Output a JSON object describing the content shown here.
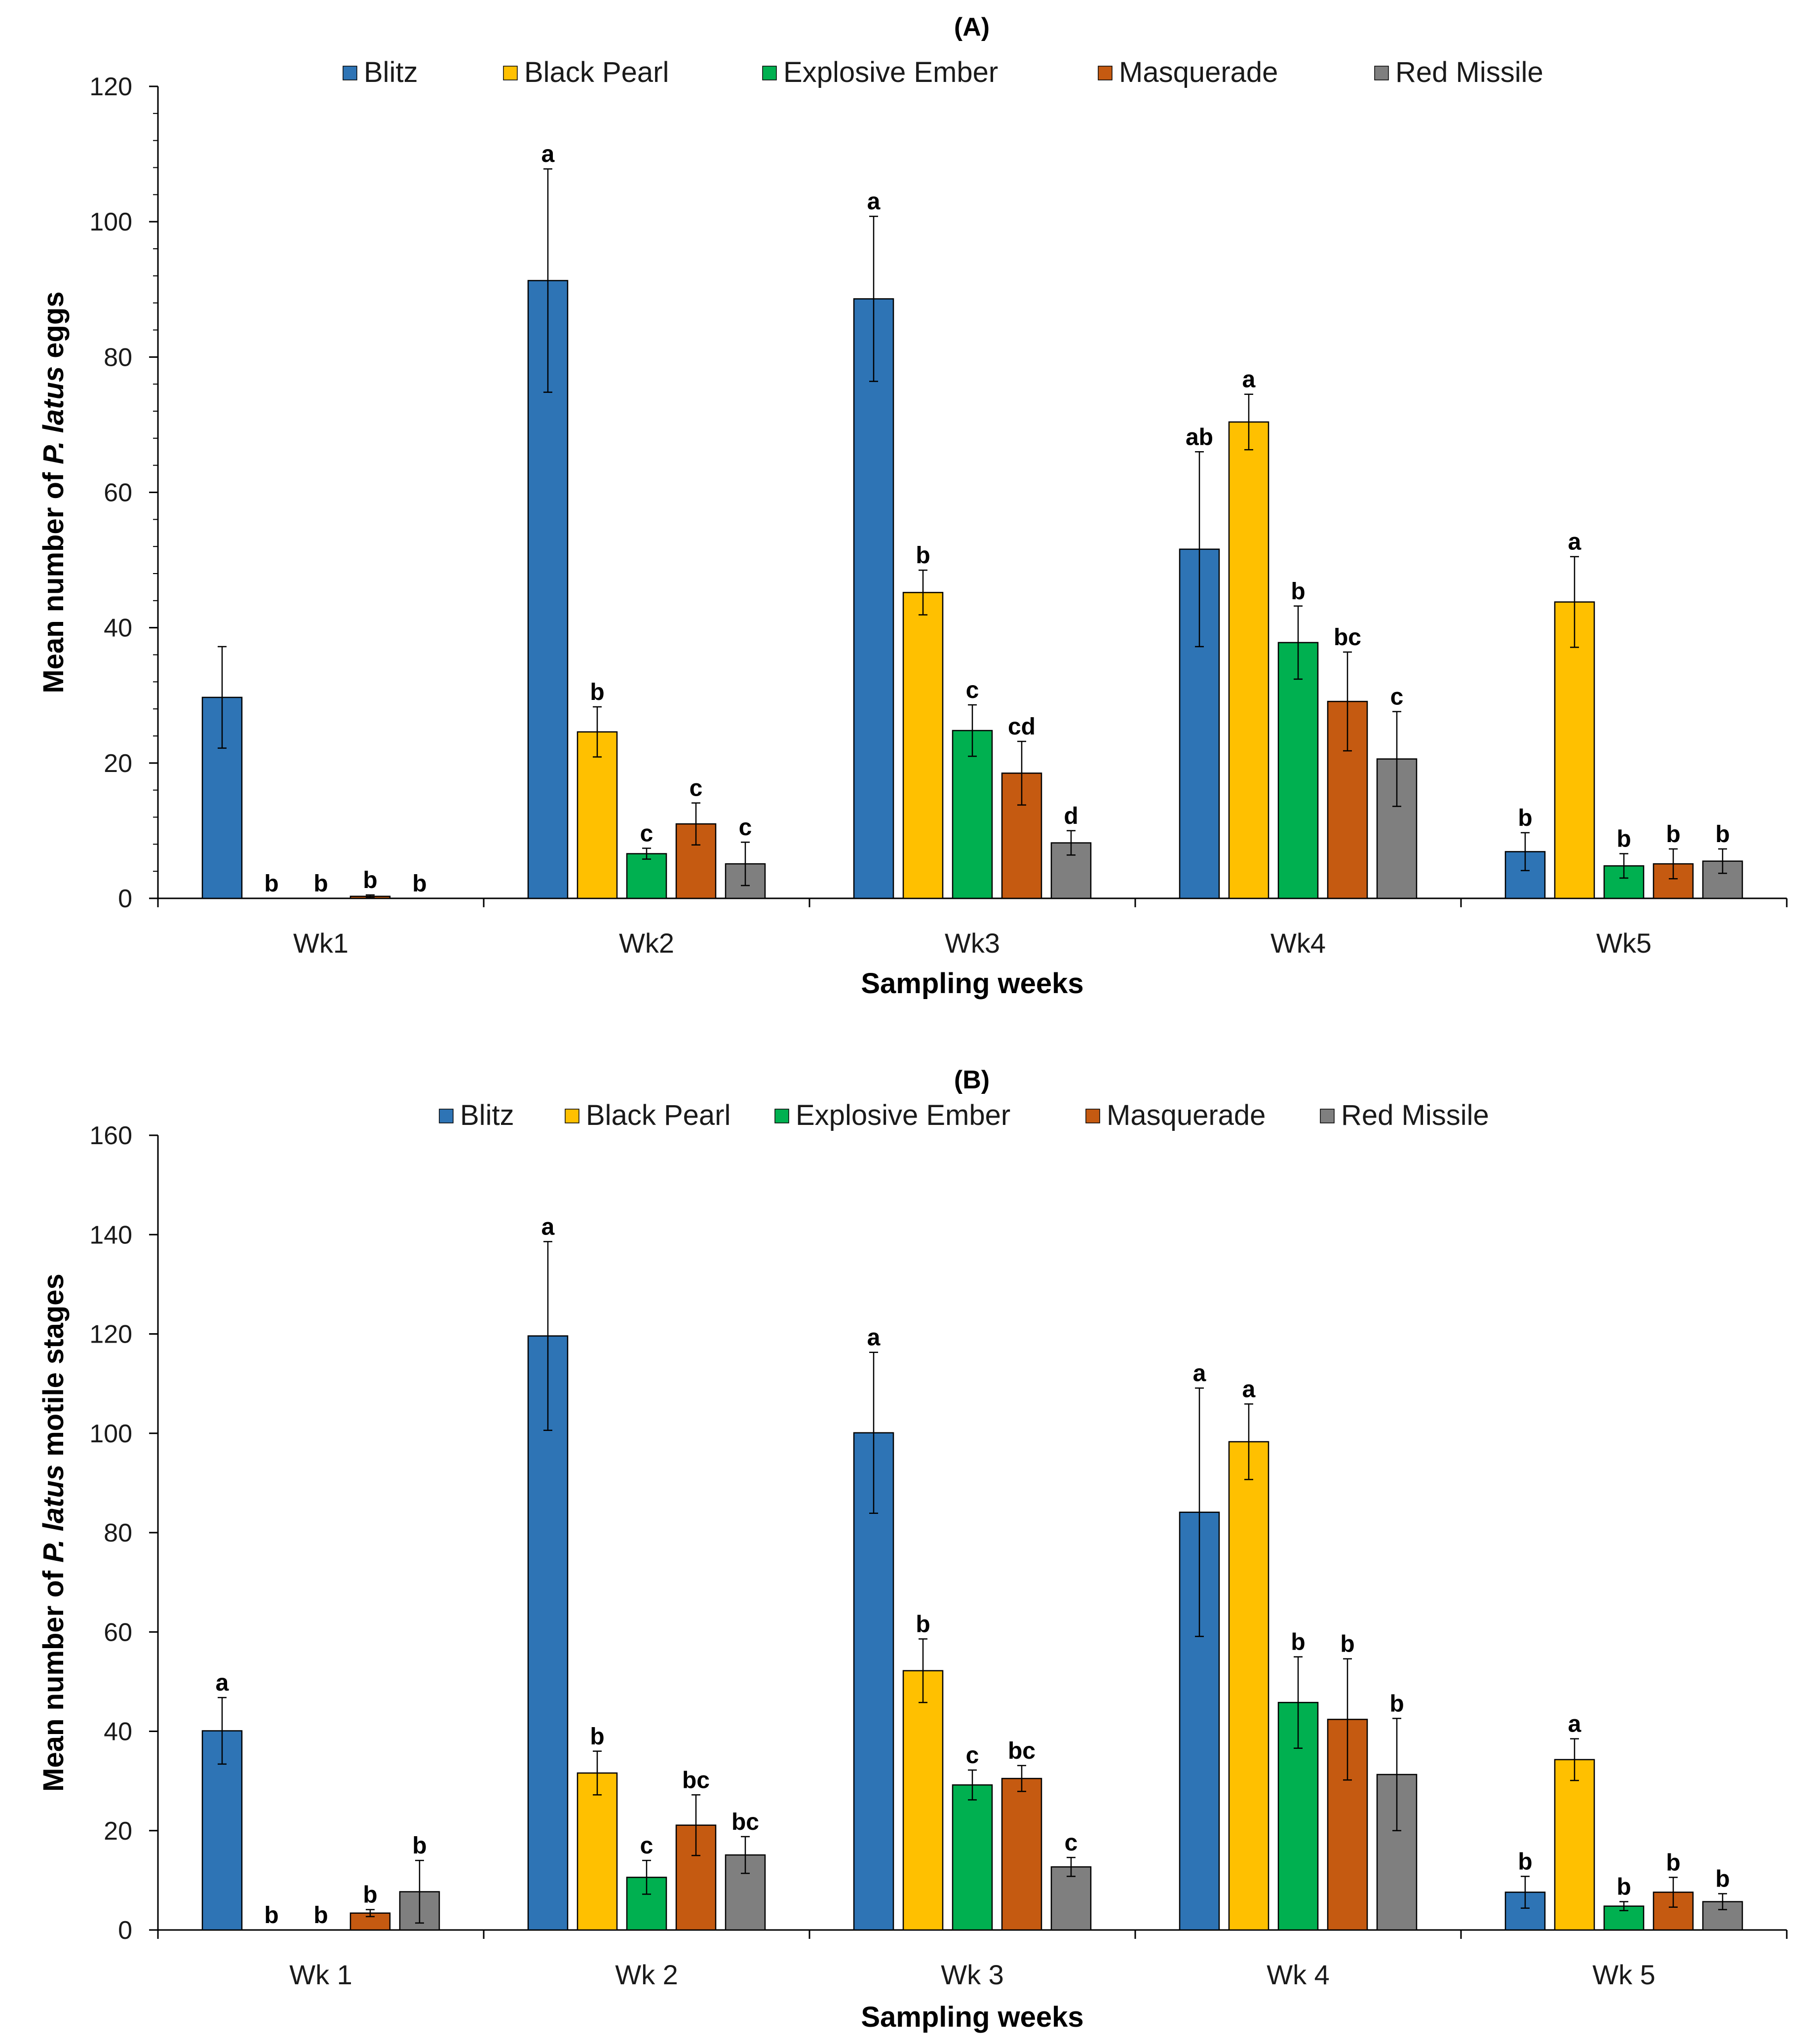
{
  "chart_data": [
    {
      "type": "bar",
      "title": "(A)",
      "xlabel": "Sampling weeks",
      "ylabel_prefix": "Mean number of ",
      "ylabel_species": "P. latus",
      "ylabel_suffix": " eggs",
      "ylim": [
        0,
        120
      ],
      "yticks": [
        0,
        20,
        40,
        60,
        80,
        100,
        120
      ],
      "categories": [
        "Wk1",
        "Wk2",
        "Wk3",
        "Wk4",
        "Wk5"
      ],
      "series": [
        {
          "name": "Blitz",
          "color": "#2E74B5",
          "values": [
            29.7,
            91.3,
            88.6,
            51.6,
            6.9
          ],
          "errors": [
            7.5,
            16.5,
            12.2,
            14.4,
            2.8
          ],
          "labels": [
            "",
            "a",
            "a",
            "ab",
            "b"
          ]
        },
        {
          "name": "Black Pearl",
          "color": "#FFC000",
          "values": [
            0,
            24.6,
            45.2,
            70.4,
            43.8
          ],
          "errors": [
            0,
            3.7,
            3.3,
            4.1,
            6.7
          ],
          "labels": [
            "b",
            "b",
            "b",
            "a",
            "a"
          ]
        },
        {
          "name": "Explosive Ember",
          "color": "#00B050",
          "values": [
            0,
            6.6,
            24.8,
            37.8,
            4.8
          ],
          "errors": [
            0,
            0.8,
            3.8,
            5.4,
            1.8
          ],
          "labels": [
            "b",
            "c",
            "c",
            "b",
            "b"
          ]
        },
        {
          "name": "Masquerade",
          "color": "#C55A11",
          "values": [
            0.3,
            11.0,
            18.5,
            29.1,
            5.1
          ],
          "errors": [
            0.2,
            3.1,
            4.7,
            7.3,
            2.2
          ],
          "labels": [
            "b",
            "c",
            "cd",
            "bc",
            "b"
          ]
        },
        {
          "name": "Red Missile",
          "color": "#7F7F7F",
          "values": [
            0,
            5.1,
            8.2,
            20.6,
            5.5
          ],
          "errors": [
            0,
            3.2,
            1.8,
            7.0,
            1.8
          ],
          "labels": [
            "b",
            "c",
            "d",
            "c",
            "b"
          ]
        }
      ]
    },
    {
      "type": "bar",
      "title": "(B)",
      "xlabel": "Sampling weeks",
      "ylabel_prefix": "Mean number of ",
      "ylabel_species": "P. latus",
      "ylabel_suffix": " motile stages",
      "ylim": [
        0,
        160
      ],
      "yticks": [
        0,
        20,
        40,
        60,
        80,
        100,
        120,
        140,
        160
      ],
      "categories": [
        "Wk 1",
        "Wk 2",
        "Wk 3",
        "Wk 4",
        "Wk 5"
      ],
      "series": [
        {
          "name": "Blitz",
          "color": "#2E74B5",
          "values": [
            40.1,
            119.6,
            100.1,
            84.1,
            7.6
          ],
          "errors": [
            6.7,
            19.0,
            16.2,
            25.0,
            3.2
          ],
          "labels": [
            "a",
            "a",
            "a",
            "a",
            "b"
          ]
        },
        {
          "name": "Black Pearl",
          "color": "#FFC000",
          "values": [
            0,
            31.6,
            52.2,
            98.3,
            34.3
          ],
          "errors": [
            0,
            4.4,
            6.4,
            7.6,
            4.2
          ],
          "labels": [
            "b",
            "b",
            "b",
            "a",
            "a"
          ]
        },
        {
          "name": "Explosive Ember",
          "color": "#00B050",
          "values": [
            0,
            10.6,
            29.2,
            45.8,
            4.8
          ],
          "errors": [
            0,
            3.4,
            3.0,
            9.2,
            0.9
          ],
          "labels": [
            "b",
            "c",
            "c",
            "b",
            "b"
          ]
        },
        {
          "name": "Masquerade",
          "color": "#C55A11",
          "values": [
            3.4,
            21.1,
            30.5,
            42.4,
            7.6
          ],
          "errors": [
            0.7,
            6.1,
            2.6,
            12.2,
            3.0
          ],
          "labels": [
            "b",
            "bc",
            "bc",
            "b",
            "b"
          ]
        },
        {
          "name": "Red Missile",
          "color": "#7F7F7F",
          "values": [
            7.7,
            15.1,
            12.7,
            31.3,
            5.7
          ],
          "errors": [
            6.3,
            3.7,
            1.9,
            11.3,
            1.6
          ],
          "labels": [
            "b",
            "bc",
            "c",
            "b",
            "b"
          ]
        }
      ]
    }
  ]
}
